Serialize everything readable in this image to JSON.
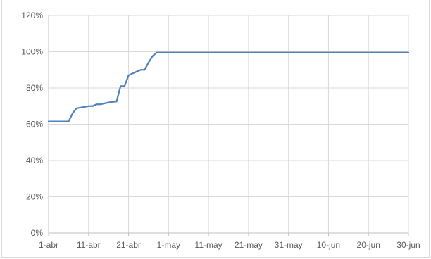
{
  "chart_data": {
    "type": "line",
    "title": "",
    "xlabel": "",
    "ylabel": "",
    "y_tick_labels": [
      "0%",
      "20%",
      "40%",
      "60%",
      "80%",
      "100%",
      "120%"
    ],
    "y_ticks": [
      0,
      20,
      40,
      60,
      80,
      100,
      120
    ],
    "ylim": [
      0,
      120
    ],
    "x_tick_labels": [
      "1-abr",
      "11-abr",
      "21-abr",
      "1-may",
      "11-may",
      "21-may",
      "31-may",
      "10-jun",
      "20-jun",
      "30-jun"
    ],
    "x_ticks": [
      "2023-04-01",
      "2023-04-11",
      "2023-04-21",
      "2023-05-01",
      "2023-05-11",
      "2023-05-21",
      "2023-05-31",
      "2023-06-10",
      "2023-06-20",
      "2023-06-30"
    ],
    "xlim": [
      "2023-04-01",
      "2023-06-30"
    ],
    "grid": true,
    "legend": "none",
    "series": [
      {
        "color": "#4f81bd",
        "points": [
          [
            "2023-04-01",
            61.5
          ],
          [
            "2023-04-06",
            61.5
          ],
          [
            "2023-04-07",
            66
          ],
          [
            "2023-04-08",
            68.8
          ],
          [
            "2023-04-09",
            69.2
          ],
          [
            "2023-04-10",
            69.6
          ],
          [
            "2023-04-11",
            70
          ],
          [
            "2023-04-12",
            70
          ],
          [
            "2023-04-13",
            71
          ],
          [
            "2023-04-14",
            71
          ],
          [
            "2023-04-15",
            71.5
          ],
          [
            "2023-04-16",
            72
          ],
          [
            "2023-04-17",
            72.3
          ],
          [
            "2023-04-18",
            72.5
          ],
          [
            "2023-04-19",
            81
          ],
          [
            "2023-04-20",
            81
          ],
          [
            "2023-04-21",
            87
          ],
          [
            "2023-04-22",
            88
          ],
          [
            "2023-04-23",
            89
          ],
          [
            "2023-04-24",
            90
          ],
          [
            "2023-04-25",
            90
          ],
          [
            "2023-04-26",
            94
          ],
          [
            "2023-04-27",
            97.5
          ],
          [
            "2023-04-28",
            99.5
          ],
          [
            "2023-05-05",
            99.5
          ],
          [
            "2023-05-15",
            99.5
          ],
          [
            "2023-05-25",
            99.5
          ],
          [
            "2023-06-05",
            99.5
          ],
          [
            "2023-06-15",
            99.5
          ],
          [
            "2023-06-30",
            99.5
          ]
        ]
      }
    ]
  }
}
